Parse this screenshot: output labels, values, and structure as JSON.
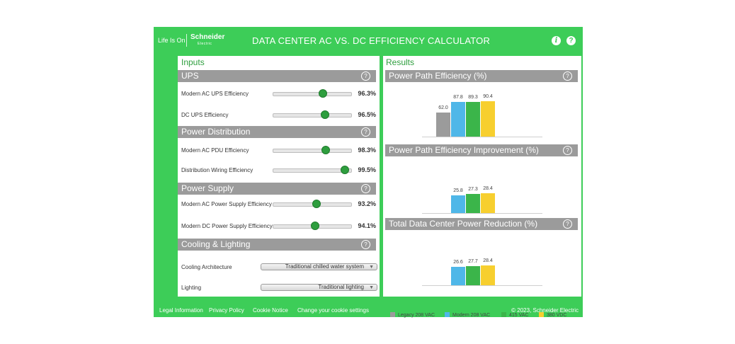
{
  "header": {
    "brand_tagline": "Life Is On",
    "brand_name": "Schneider",
    "brand_sub": "Electric",
    "title": "DATA CENTER AC VS. DC EFFICIENCY CALCULATOR",
    "info_icon": "info-icon",
    "help_icon": "help-icon"
  },
  "inputs": {
    "title": "Inputs",
    "sections": [
      {
        "title": "UPS",
        "rows": [
          {
            "label": "Modern AC UPS Efficiency",
            "value": "96.3%",
            "slider_fraction": 0.64
          },
          {
            "label": "DC UPS Efficiency",
            "value": "96.5%",
            "slider_fraction": 0.66
          }
        ]
      },
      {
        "title": "Power Distribution",
        "rows": [
          {
            "label": "Modern AC PDU Efficiency",
            "value": "98.3%",
            "slider_fraction": 0.67
          },
          {
            "label": "Distribution Wiring Efficiency",
            "value": "99.5%",
            "slider_fraction": 0.92
          }
        ]
      },
      {
        "title": "Power Supply",
        "rows": [
          {
            "label": "Modern AC Power Supply Efficiency",
            "value": "93.2%",
            "slider_fraction": 0.55
          },
          {
            "label": "Modern DC Power Supply Efficiency",
            "value": "94.1%",
            "slider_fraction": 0.54
          }
        ]
      },
      {
        "title": "Cooling & Lighting",
        "selects": [
          {
            "label": "Cooling Architecture",
            "value": "Traditional chilled water system"
          },
          {
            "label": "Lighting",
            "value": "Traditional lighting"
          }
        ]
      }
    ]
  },
  "results": {
    "title": "Results",
    "series_colors": [
      "#9b9b9b",
      "#4fb7e8",
      "#3bb54a",
      "#f7cf2f"
    ],
    "charts": [
      {
        "title": "Power Path Efficiency (%)",
        "values": [
          62.0,
          87.8,
          89.3,
          90.4
        ],
        "labels": [
          "62.0",
          "87.8",
          "89.3",
          "90.4"
        ],
        "max": 90.4
      },
      {
        "title": "Power Path Efficiency Improvement (%)",
        "values": [
          25.8,
          27.3,
          28.4
        ],
        "labels": [
          "25.8",
          "27.3",
          "28.4"
        ],
        "max": 28.4
      },
      {
        "title": "Total Data Center Power Reduction (%)",
        "values": [
          26.6,
          27.7,
          28.4
        ],
        "labels": [
          "26.6",
          "27.7",
          "28.4"
        ],
        "max": 28.4
      }
    ],
    "legend": [
      "Legacy 208 VAC",
      "Modern 208 VAC",
      "415 VAC",
      "380 VDC"
    ]
  },
  "footer": {
    "links": [
      "Legal Information",
      "Privacy Policy",
      "Cookie Notice",
      "Change your cookie settings"
    ],
    "copyright": "© 2023, Schneider Electric"
  }
}
